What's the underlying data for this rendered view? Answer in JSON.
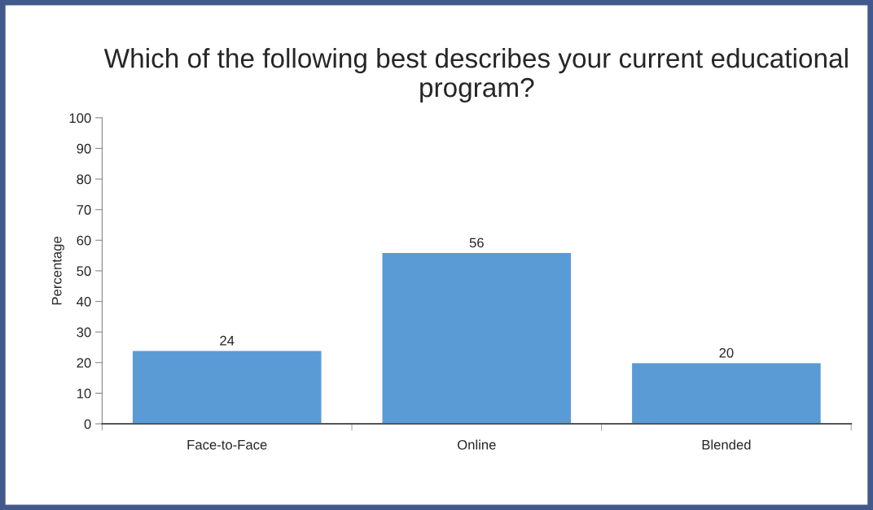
{
  "chart_data": {
    "type": "bar",
    "title": "Which of the following best describes your current educational program?",
    "ylabel": "Percentage",
    "categories": [
      "Face-to-Face",
      "Online",
      "Blended"
    ],
    "values": [
      24,
      56,
      20
    ],
    "color": "#5b9bd5",
    "ylim": [
      0,
      100
    ],
    "yticks": [
      0,
      10,
      20,
      30,
      40,
      50,
      60,
      70,
      80,
      90,
      100
    ],
    "data_labels": true,
    "grid": false,
    "legend": false
  }
}
